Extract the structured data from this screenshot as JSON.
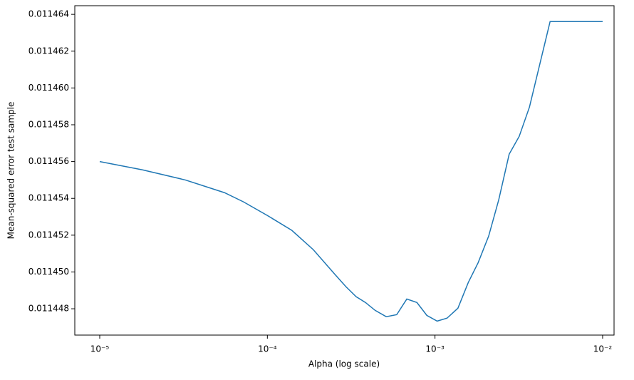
{
  "chart_data": {
    "type": "line",
    "xlabel": "Alpha (log scale)",
    "ylabel": "Mean-squared error test sample",
    "xscale": "log",
    "color": "#1f77b4",
    "x": [
      1e-05,
      1.8e-05,
      3.24e-05,
      5.55e-05,
      7.2e-05,
      0.0001,
      0.00014,
      0.000188,
      0.000254,
      0.000295,
      0.000339,
      0.000385,
      0.00044,
      0.000512,
      0.000591,
      0.000679,
      0.00078,
      0.000894,
      0.00103,
      0.00118,
      0.00137,
      0.00158,
      0.00181,
      0.00209,
      0.0024,
      0.00277,
      0.00318,
      0.00366,
      0.00486,
      0.01
    ],
    "values": [
      0.011456,
      0.01145555,
      0.011455,
      0.01145431,
      0.01145381,
      0.01145307,
      0.01145226,
      0.01145121,
      0.01144985,
      0.01144919,
      0.01144865,
      0.01144834,
      0.01144791,
      0.01144757,
      0.01144768,
      0.01144853,
      0.01144834,
      0.01144764,
      0.01144733,
      0.01144749,
      0.01144803,
      0.01144943,
      0.01145051,
      0.01145195,
      0.01145392,
      0.0114564,
      0.01145737,
      0.01145896,
      0.01146361,
      0.01146361
    ],
    "xlim": [
      7.1e-06,
      0.0117
    ],
    "ylim": [
      0.01144657,
      0.01146447
    ],
    "xticks": [
      {
        "value": 1e-05,
        "label": "10⁻⁵"
      },
      {
        "value": 0.0001,
        "label": "10⁻⁴"
      },
      {
        "value": 0.001,
        "label": "10⁻³"
      },
      {
        "value": 0.01,
        "label": "10⁻²"
      }
    ],
    "yticks": [
      0.011448,
      {
        "value": 0.01145,
        "label": "0.011450"
      },
      0.011452,
      0.011454,
      0.011456,
      0.011458,
      {
        "value": 0.01146,
        "label": "0.011460"
      },
      0.011462,
      0.011464
    ]
  }
}
